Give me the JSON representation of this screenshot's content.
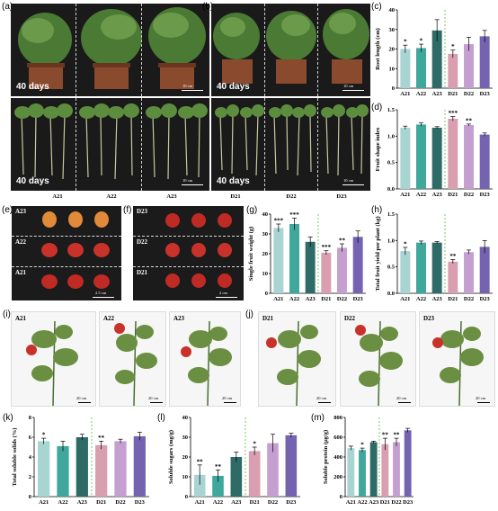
{
  "panels": {
    "a": {
      "label": "(a)",
      "day_top": "40 days",
      "day_bottom": "40 days",
      "scale_top": "10 cm",
      "scale_bottom": "10 cm",
      "groups": [
        "A21",
        "A22",
        "A23"
      ]
    },
    "b": {
      "label": "(b)",
      "day_top": "40 days",
      "day_bottom": "40 days",
      "scale_top": "10 cm",
      "scale_bottom": "10 cm",
      "groups": [
        "D21",
        "D22",
        "D23"
      ]
    },
    "e": {
      "label": "(e)",
      "rows": [
        "A23",
        "A22",
        "A21"
      ],
      "scale": "2.5 cm"
    },
    "f": {
      "label": "(f)",
      "rows": [
        "D23",
        "D22",
        "D21"
      ],
      "scale": "2 cm"
    },
    "i": {
      "label": "(i)",
      "plants": [
        "A21",
        "A22",
        "A23"
      ],
      "scales": [
        "20 cm",
        "20 cm",
        "20 cm"
      ]
    },
    "j": {
      "label": "(j)",
      "plants": [
        "D21",
        "D22",
        "D23"
      ],
      "scales": [
        "20 cm",
        "20 cm",
        "20 cm"
      ]
    }
  },
  "colors": {
    "c1": "#a8d4d2",
    "c2": "#3fa79b",
    "c3": "#2f6b66",
    "c4": "#d99fb0",
    "c5": "#c59fd0",
    "c6": "#7463b0",
    "divider": "#6cc24a"
  },
  "chart_data": [
    {
      "id": "c",
      "label": "(c)",
      "type": "bar",
      "categories": [
        "A21",
        "A22",
        "A23",
        "D21",
        "D22",
        "D23"
      ],
      "values": [
        20,
        20.5,
        29.5,
        17.5,
        22.5,
        26.5
      ],
      "errors": [
        2,
        2,
        5.5,
        2,
        3.5,
        3
      ],
      "sig": [
        "*",
        "*",
        "",
        "*",
        "",
        ""
      ],
      "ylabel": "Root length (cm)",
      "ylim": [
        0,
        40
      ],
      "ticks": [
        0,
        10,
        20,
        30,
        40
      ]
    },
    {
      "id": "d",
      "label": "(d)",
      "type": "bar",
      "categories": [
        "A21",
        "A22",
        "A23",
        "D21",
        "D22",
        "D23"
      ],
      "values": [
        1.16,
        1.22,
        1.16,
        1.33,
        1.21,
        1.03
      ],
      "errors": [
        0.03,
        0.03,
        0.02,
        0.04,
        0.02,
        0.03
      ],
      "sig": [
        "",
        "",
        "",
        "***",
        "**",
        ""
      ],
      "ylabel": "Fruit shape index",
      "ylim": [
        0,
        1.5
      ],
      "ticks": [
        0.0,
        0.5,
        1.0,
        1.5
      ]
    },
    {
      "id": "g",
      "label": "(g)",
      "type": "bar",
      "categories": [
        "A21",
        "A22",
        "A23",
        "D21",
        "D22",
        "D23"
      ],
      "values": [
        33,
        35,
        26,
        20.5,
        23,
        28.5
      ],
      "errors": [
        2,
        3,
        2.5,
        1,
        2,
        3
      ],
      "sig": [
        "***",
        "***",
        "",
        "***",
        "**",
        ""
      ],
      "ylabel": "Single fruit weight (g)",
      "ylim": [
        0,
        40
      ],
      "ticks": [
        0,
        10,
        20,
        30,
        40
      ]
    },
    {
      "id": "h",
      "label": "(h)",
      "type": "bar",
      "categories": [
        "A21",
        "A22",
        "A23",
        "D21",
        "D22",
        "D23"
      ],
      "values": [
        0.8,
        0.96,
        0.96,
        0.6,
        0.78,
        0.88
      ],
      "errors": [
        0.07,
        0.03,
        0.02,
        0.04,
        0.04,
        0.12
      ],
      "sig": [
        "*",
        "",
        "",
        "**",
        "",
        ""
      ],
      "ylabel": "Total fruit yield per plant (kg)",
      "ylim": [
        0,
        1.5
      ],
      "ticks": [
        0.0,
        0.5,
        1.0,
        1.5
      ]
    },
    {
      "id": "k",
      "label": "(k)",
      "type": "bar",
      "categories": [
        "A21",
        "A22",
        "A23",
        "D21",
        "D22",
        "D23"
      ],
      "values": [
        5.6,
        5.1,
        6.0,
        5.2,
        5.6,
        6.1
      ],
      "errors": [
        0.3,
        0.5,
        0.3,
        0.4,
        0.2,
        0.4
      ],
      "sig": [
        "*",
        "",
        "",
        "**",
        "",
        ""
      ],
      "ylabel": "Total soluble solids (%)",
      "ylim": [
        0,
        8
      ],
      "ticks": [
        0,
        2,
        4,
        6,
        8
      ]
    },
    {
      "id": "l",
      "label": "(l)",
      "type": "bar",
      "categories": [
        "A21",
        "A22",
        "A23",
        "D21",
        "D22",
        "D23"
      ],
      "values": [
        11,
        10.5,
        20,
        23,
        27,
        31
      ],
      "errors": [
        5,
        3,
        2.5,
        2,
        4.5,
        1
      ],
      "sig": [
        "**",
        "**",
        "",
        "*",
        "",
        ""
      ],
      "ylabel": "Soluble sugars (mg/g)",
      "ylim": [
        0,
        40
      ],
      "ticks": [
        0,
        10,
        20,
        30,
        40
      ]
    },
    {
      "id": "m",
      "label": "(m)",
      "type": "bar",
      "categories": [
        "A21",
        "A22",
        "A23",
        "D21",
        "D22",
        "D23"
      ],
      "values": [
        490,
        470,
        550,
        530,
        550,
        670
      ],
      "errors": [
        20,
        20,
        10,
        60,
        40,
        20
      ],
      "sig": [
        "",
        "*",
        "",
        "**",
        "**",
        ""
      ],
      "ylabel": "Soluble protein (μg/g)",
      "ylim": [
        0,
        800
      ],
      "ticks": [
        0,
        200,
        400,
        600,
        800
      ]
    }
  ]
}
